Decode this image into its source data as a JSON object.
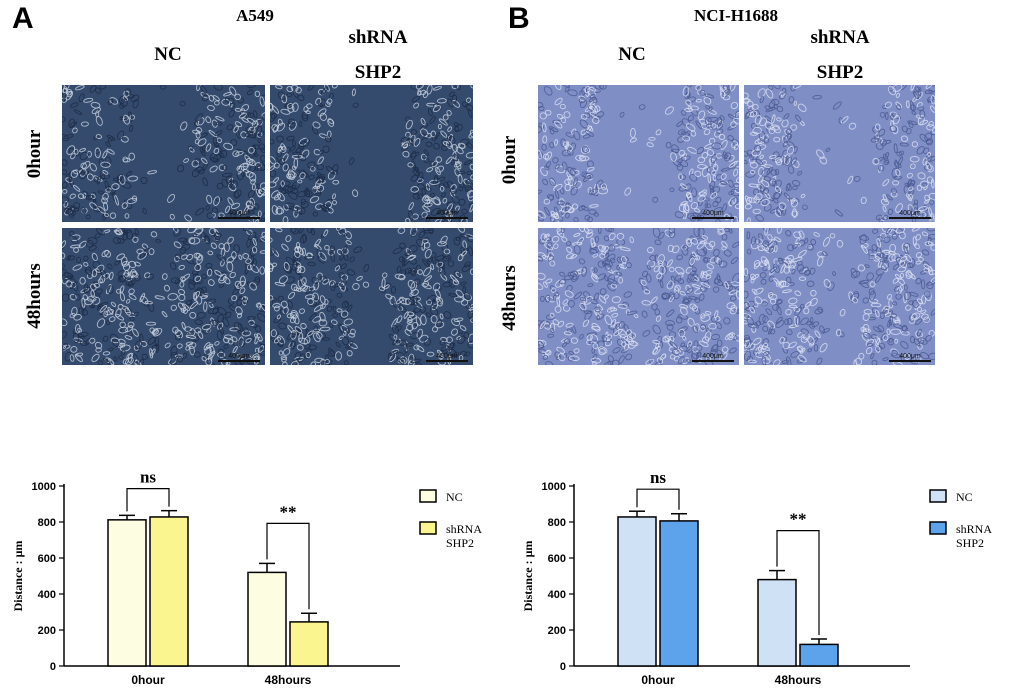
{
  "figure": {
    "panels": [
      {
        "letter": "A",
        "cell_line": "A549",
        "columns": [
          "NC",
          "shRNA",
          "SHP2"
        ],
        "rows": [
          "0hour",
          "48hours"
        ],
        "scale_label": "400μm",
        "colors": {
          "background": "#344b6e",
          "cell": "#c7cfdd",
          "cell_dark": "#1d2c47"
        }
      },
      {
        "letter": "B",
        "cell_line": "NCI-H1688",
        "columns": [
          "NC",
          "shRNA",
          "SHP2"
        ],
        "rows": [
          "0hour",
          "48hours"
        ],
        "scale_label": "400μm",
        "colors": {
          "background": "#7f8fc6",
          "cell": "#d9def0",
          "cell_dark": "#4b5a92"
        }
      }
    ]
  },
  "chart_data": [
    {
      "type": "bar",
      "title": "",
      "xlabel": "",
      "ylabel": "Distance : μm",
      "ylim": [
        0,
        1000
      ],
      "yticks": [
        "0",
        "200",
        "400",
        "600",
        "800",
        "1000"
      ],
      "categories": [
        "0hour",
        "48hours"
      ],
      "series": [
        {
          "name": "NC",
          "values": [
            812,
            520
          ],
          "errors": [
            25,
            50
          ],
          "color": "#fdfde2"
        },
        {
          "name": "shRNA SHP2",
          "legend_lines": [
            "shRNA",
            "SHP2"
          ],
          "values": [
            828,
            245
          ],
          "errors": [
            35,
            48
          ],
          "color": "#fbf58f"
        }
      ],
      "significance": [
        "ns",
        "**"
      ],
      "legend_position": "right"
    },
    {
      "type": "bar",
      "title": "",
      "xlabel": "",
      "ylabel": "Distance : μm",
      "ylim": [
        0,
        1000
      ],
      "yticks": [
        "0",
        "200",
        "400",
        "600",
        "800",
        "1000"
      ],
      "categories": [
        "0hour",
        "48hours"
      ],
      "series": [
        {
          "name": "NC",
          "values": [
            828,
            480
          ],
          "errors": [
            32,
            50
          ],
          "color": "#cfe1f5"
        },
        {
          "name": "shRNA SHP2",
          "legend_lines": [
            "shRNA",
            "SHP2"
          ],
          "values": [
            806,
            120
          ],
          "errors": [
            40,
            30
          ],
          "color": "#5ca3ec"
        }
      ],
      "significance": [
        "ns",
        "**"
      ],
      "legend_position": "right"
    }
  ]
}
